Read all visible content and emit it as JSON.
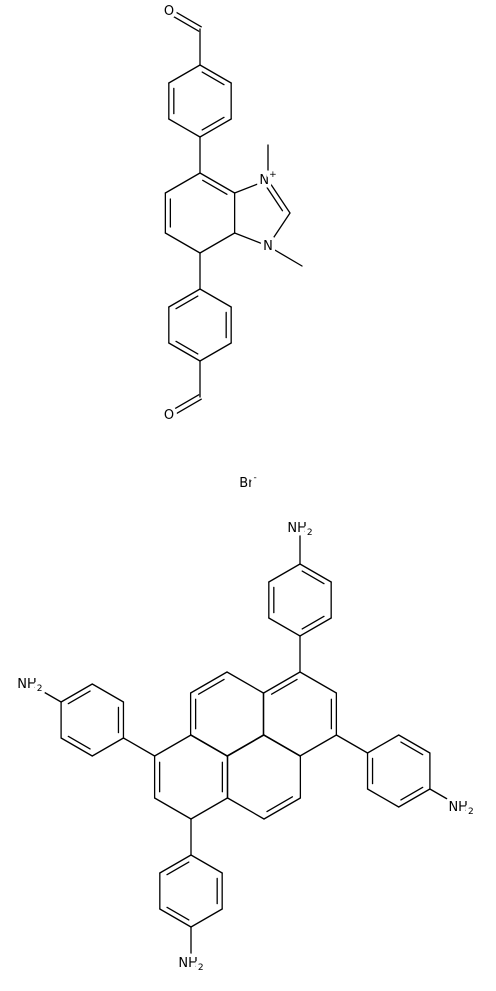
{
  "atoms": [
    {
      "label": "O"
    },
    {
      "label": "O"
    },
    {
      "label": "N",
      "charge": "+"
    },
    {
      "label": "N"
    },
    {
      "label": "Br",
      "charge": "-"
    },
    {
      "label": "NH",
      "subscript": "2"
    },
    {
      "label": "NH",
      "subscript": "2"
    },
    {
      "label": "NH",
      "subscript": "2"
    },
    {
      "label": "NH",
      "subscript": "2"
    }
  ]
}
